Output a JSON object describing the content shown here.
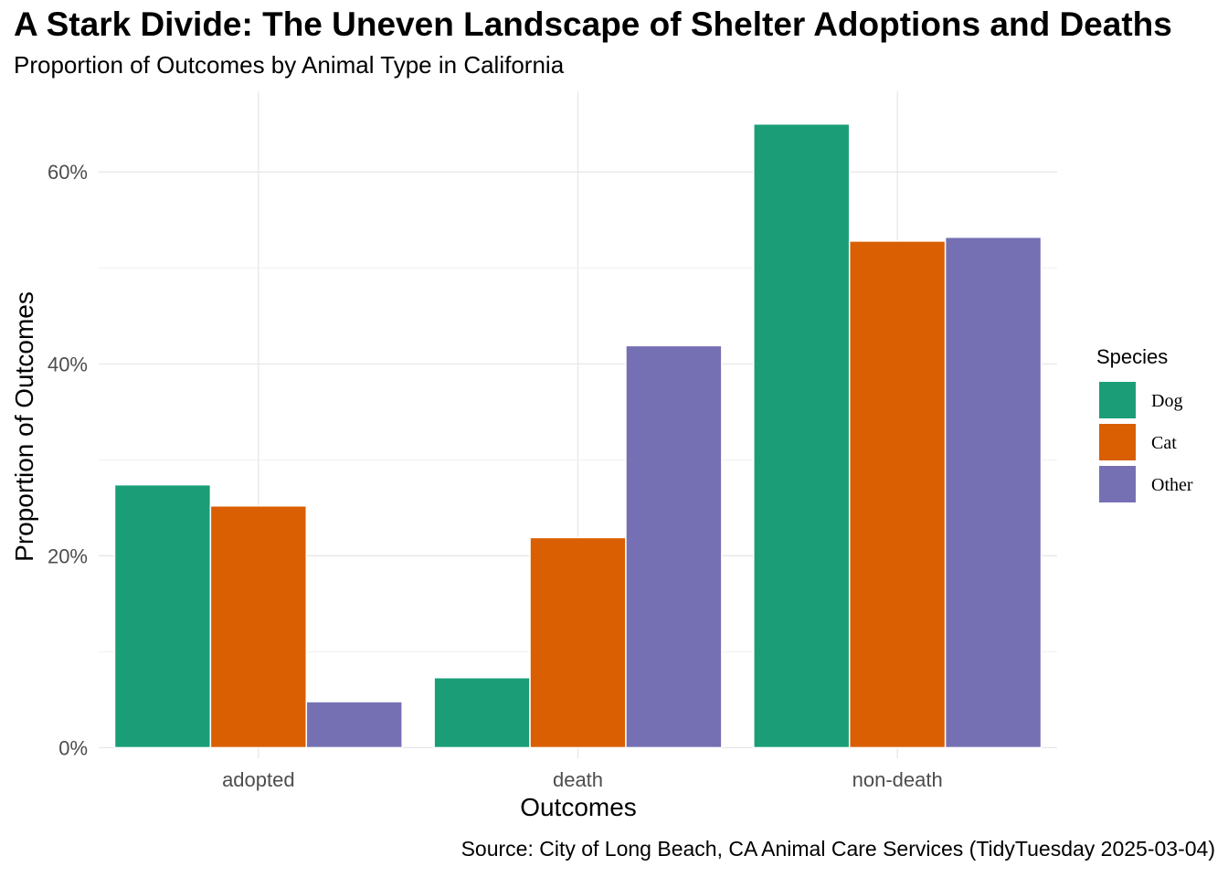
{
  "chart_data": {
    "type": "bar",
    "title": "A Stark Divide: The Uneven Landscape of Shelter Adoptions and Deaths",
    "subtitle": "Proportion of Outcomes by Animal Type in California",
    "caption": "Source: City of Long Beach, CA Animal Care Services (TidyTuesday 2025-03-04)",
    "xlabel": "Outcomes",
    "ylabel": "Proportion of Outcomes",
    "categories": [
      "adopted",
      "death",
      "non-death"
    ],
    "series": [
      {
        "name": "Dog",
        "color": "#1b9e77",
        "values": [
          27.4,
          7.3,
          65.0
        ]
      },
      {
        "name": "Cat",
        "color": "#d95f02",
        "values": [
          25.2,
          21.9,
          52.8
        ]
      },
      {
        "name": "Other",
        "color": "#7570b3",
        "values": [
          4.8,
          41.9,
          53.2
        ]
      }
    ],
    "yticks": [
      0,
      20,
      40,
      60
    ],
    "ytick_labels": [
      "0%",
      "20%",
      "40%",
      "60%"
    ],
    "ylim": [
      -1.1,
      68.4
    ],
    "grid": true,
    "legend": {
      "title": "Species",
      "position": "right"
    }
  }
}
